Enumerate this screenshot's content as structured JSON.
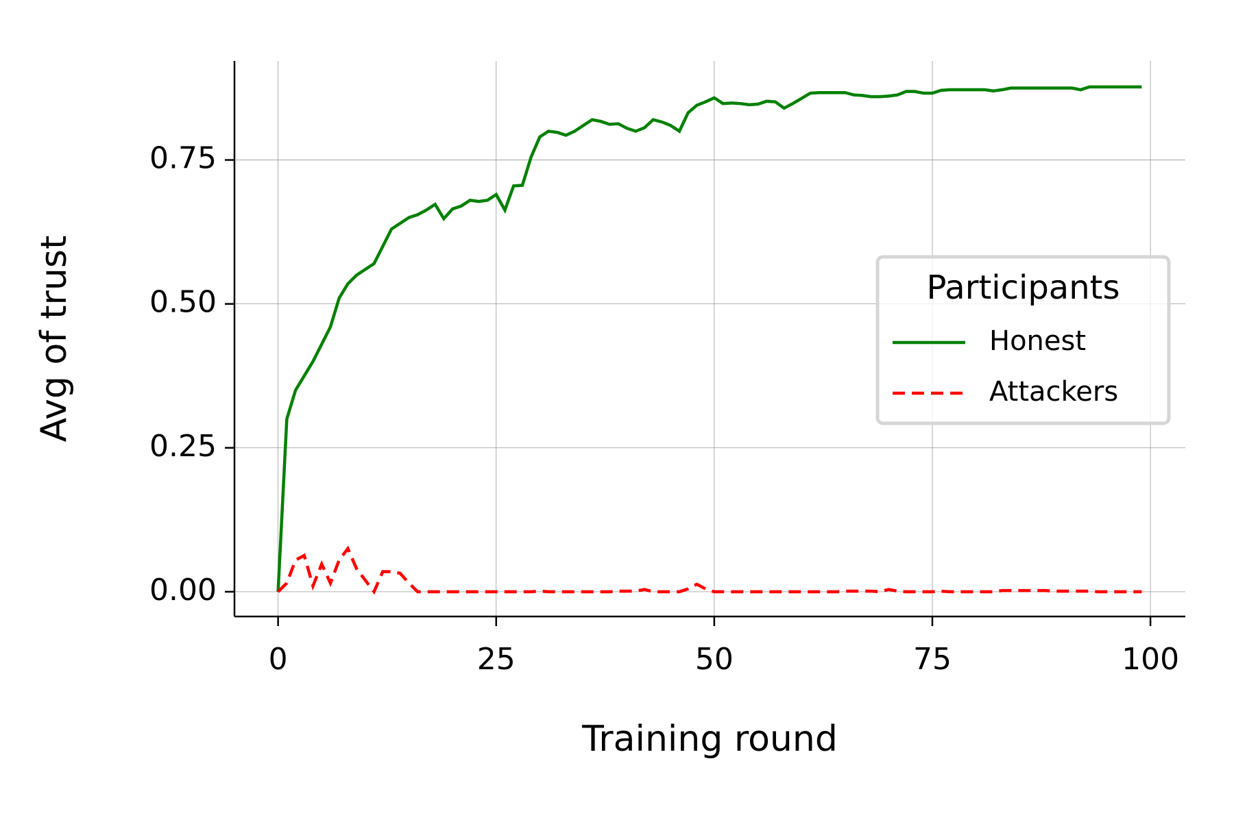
{
  "chart_data": {
    "type": "line",
    "x_label": "Training round",
    "y_label": "Avg of trust",
    "x": [
      0,
      1,
      2,
      3,
      4,
      5,
      6,
      7,
      8,
      9,
      10,
      11,
      12,
      13,
      14,
      15,
      16,
      17,
      18,
      19,
      20,
      21,
      22,
      23,
      24,
      25,
      26,
      27,
      28,
      29,
      30,
      31,
      32,
      33,
      34,
      35,
      36,
      37,
      38,
      39,
      40,
      41,
      42,
      43,
      44,
      45,
      46,
      47,
      48,
      49,
      50,
      51,
      52,
      53,
      54,
      55,
      56,
      57,
      58,
      59,
      60,
      61,
      62,
      63,
      64,
      65,
      66,
      67,
      68,
      69,
      70,
      71,
      72,
      73,
      74,
      75,
      76,
      77,
      78,
      79,
      80,
      81,
      82,
      83,
      84,
      85,
      86,
      87,
      88,
      89,
      90,
      91,
      92,
      93,
      94,
      95,
      96,
      97,
      98,
      99
    ],
    "series": [
      {
        "name": "Honest",
        "color": "#008000",
        "dash": "solid",
        "values": [
          0,
          0.3,
          0.35,
          0.375,
          0.4,
          0.43,
          0.46,
          0.51,
          0.535,
          0.55,
          0.56,
          0.57,
          0.6,
          0.63,
          0.64,
          0.65,
          0.655,
          0.663,
          0.673,
          0.648,
          0.665,
          0.67,
          0.68,
          0.678,
          0.68,
          0.69,
          0.663,
          0.705,
          0.706,
          0.755,
          0.79,
          0.8,
          0.798,
          0.793,
          0.8,
          0.81,
          0.82,
          0.817,
          0.812,
          0.813,
          0.805,
          0.8,
          0.806,
          0.82,
          0.816,
          0.81,
          0.8,
          0.832,
          0.845,
          0.851,
          0.858,
          0.848,
          0.849,
          0.848,
          0.846,
          0.847,
          0.852,
          0.851,
          0.84,
          0.848,
          0.857,
          0.866,
          0.867,
          0.867,
          0.867,
          0.867,
          0.863,
          0.862,
          0.86,
          0.86,
          0.861,
          0.863,
          0.869,
          0.869,
          0.866,
          0.866,
          0.871,
          0.872,
          0.872,
          0.872,
          0.872,
          0.872,
          0.87,
          0.872,
          0.875,
          0.875,
          0.875,
          0.875,
          0.875,
          0.875,
          0.875,
          0.875,
          0.872,
          0.877,
          0.877,
          0.877,
          0.877,
          0.877,
          0.877,
          0.877
        ]
      },
      {
        "name": "Attackers",
        "color": "#ff0000",
        "dash": "dashed",
        "values": [
          0,
          0.015,
          0.055,
          0.063,
          0.01,
          0.048,
          0.015,
          0.055,
          0.075,
          0.04,
          0.02,
          0.0,
          0.035,
          0.035,
          0.032,
          0.015,
          0,
          0,
          0,
          0,
          0,
          0,
          0,
          0,
          0,
          0,
          0,
          0,
          0,
          0,
          0.001,
          0,
          0,
          0,
          0,
          0,
          0,
          0,
          0,
          0.001,
          0.001,
          0.001,
          0.004,
          0,
          0,
          0,
          0,
          0.005,
          0.013,
          0.005,
          0,
          0,
          0,
          0,
          0,
          0,
          0,
          0,
          0,
          0,
          0,
          0,
          0,
          0,
          0,
          0.001,
          0.001,
          0.001,
          0.001,
          0,
          0.004,
          0.001,
          0,
          0,
          0,
          0,
          0.001,
          0,
          0,
          0,
          0,
          0,
          0,
          0.002,
          0.002,
          0.002,
          0.002,
          0.002,
          0.002,
          0.001,
          0.001,
          0.001,
          0.001,
          0.001,
          0,
          0,
          0,
          0,
          0,
          0
        ]
      }
    ],
    "xlim": [
      -5,
      104
    ],
    "ylim": [
      -0.043,
      0.922
    ],
    "xticks": [
      0,
      25,
      50,
      75,
      100
    ],
    "yticks": [
      {
        "value": 0,
        "label": "0.00"
      },
      {
        "value": 0.25,
        "label": "0.25"
      },
      {
        "value": 0.5,
        "label": "0.50"
      },
      {
        "value": 0.75,
        "label": "0.75"
      }
    ],
    "grid": true,
    "legend_title": "Participants",
    "legend_position": "right"
  }
}
